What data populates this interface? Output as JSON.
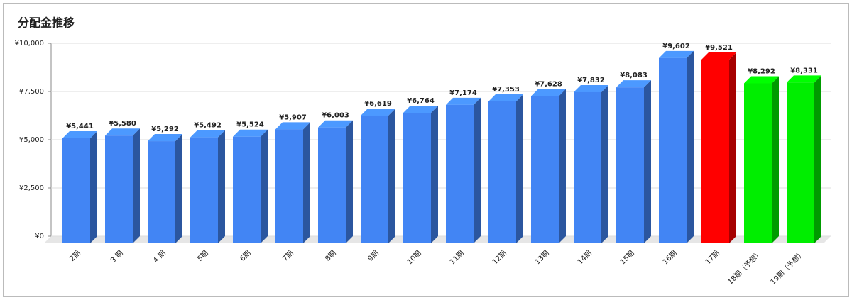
{
  "chart_data": {
    "type": "bar3d",
    "title": "分配金推移",
    "categories": [
      "2期",
      "3 期",
      "4 期",
      "5期",
      "6期",
      "7期",
      "8期",
      "9期",
      "10期",
      "11期",
      "12期",
      "13期",
      "14期",
      "15期",
      "16期",
      "17期",
      "18期（予想）",
      "19期（予想）"
    ],
    "values": [
      5441,
      5580,
      5292,
      5492,
      5524,
      5907,
      6003,
      6619,
      6764,
      7174,
      7353,
      7628,
      7832,
      8083,
      9602,
      9521,
      8292,
      8331
    ],
    "value_labels": [
      "¥5,441",
      "¥5,580",
      "¥5,292",
      "¥5,492",
      "¥5,524",
      "¥5,907",
      "¥6,003",
      "¥6,619",
      "¥6,764",
      "¥7,174",
      "¥7,353",
      "¥7,628",
      "¥7,832",
      "¥8,083",
      "¥9,602",
      "¥9,521",
      "¥8,292",
      "¥8,331"
    ],
    "colors": [
      "#4285f4",
      "#4285f4",
      "#4285f4",
      "#4285f4",
      "#4285f4",
      "#4285f4",
      "#4285f4",
      "#4285f4",
      "#4285f4",
      "#4285f4",
      "#4285f4",
      "#4285f4",
      "#4285f4",
      "#4285f4",
      "#4285f4",
      "#ff0000",
      "#00ee00",
      "#00ee00"
    ],
    "ylim": [
      0,
      10000
    ],
    "yticks": [
      {
        "value": 0,
        "label": "¥0"
      },
      {
        "value": 2500,
        "label": "¥2,500"
      },
      {
        "value": 5000,
        "label": "¥5,000"
      },
      {
        "value": 7500,
        "label": "¥7,500"
      },
      {
        "value": 10000,
        "label": "¥10,000"
      }
    ],
    "grid": true
  }
}
